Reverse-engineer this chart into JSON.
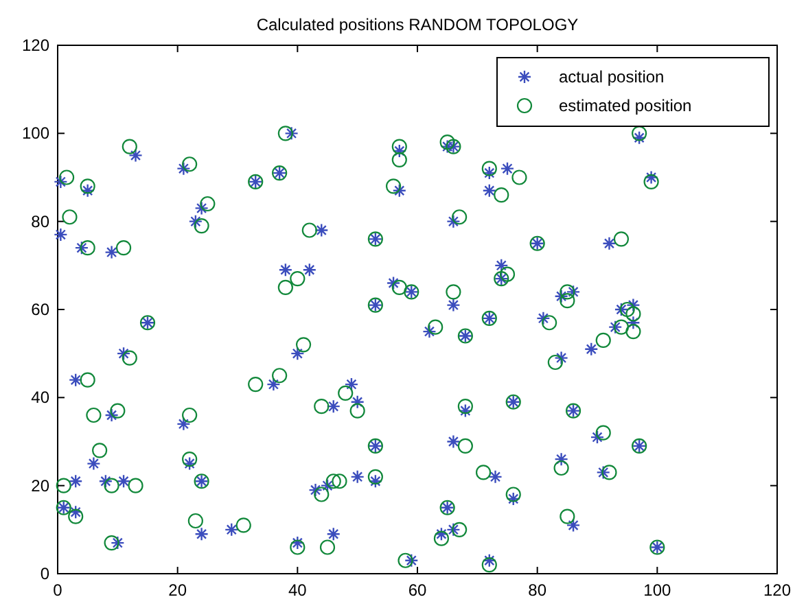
{
  "chart_data": {
    "type": "scatter",
    "title": "Calculated positions RANDOM TOPOLOGY",
    "xlim": [
      0,
      120
    ],
    "ylim": [
      0,
      120
    ],
    "xticks": [
      0,
      20,
      40,
      60,
      80,
      100,
      120
    ],
    "yticks": [
      0,
      20,
      40,
      60,
      80,
      100,
      120
    ],
    "legend": "top right",
    "grid": false,
    "series": [
      {
        "name": "actual position",
        "color": "#3b4dbd",
        "marker": "cross",
        "x": [
          0.5,
          0.5,
          4,
          5,
          13,
          9,
          21,
          23,
          24,
          39,
          37,
          33,
          44,
          53,
          57,
          57,
          65,
          66,
          66,
          72,
          75,
          72,
          80,
          97,
          99,
          92,
          15,
          11,
          3,
          36,
          38,
          40,
          42,
          53,
          56,
          59,
          62,
          66,
          68,
          72,
          74,
          74,
          81,
          84,
          86,
          84,
          89,
          94,
          96,
          96,
          93,
          49,
          50,
          46,
          21,
          9,
          6,
          3,
          8,
          11,
          1,
          3,
          10,
          22,
          24,
          24,
          29,
          43,
          45,
          46,
          40,
          53,
          53,
          50,
          59,
          65,
          64,
          66,
          66,
          68,
          73,
          76,
          76,
          72,
          84,
          86,
          86,
          90,
          91,
          97,
          100
        ],
        "values": [
          89,
          77,
          74,
          87,
          95,
          73,
          92,
          80,
          83,
          100,
          91,
          89,
          78,
          76,
          87,
          96,
          97,
          97,
          80,
          91,
          92,
          87,
          75,
          99,
          90,
          75,
          57,
          50,
          44,
          43,
          69,
          50,
          69,
          61,
          66,
          64,
          55,
          61,
          54,
          58,
          70,
          67,
          58,
          63,
          64,
          49,
          51,
          60,
          61,
          57,
          56,
          43,
          39,
          38,
          34,
          36,
          25,
          21,
          21,
          21,
          15,
          14,
          7,
          25,
          21,
          9,
          10,
          19,
          20,
          9,
          7,
          29,
          21,
          22,
          3,
          15,
          9,
          30,
          10,
          37,
          22,
          17,
          39,
          3,
          26,
          37,
          11,
          31,
          23,
          29,
          6
        ]
      },
      {
        "name": "estimated position",
        "color": "#11883a",
        "marker": "circle",
        "x": [
          1.5,
          2,
          5,
          5,
          12,
          11,
          22,
          24,
          25,
          38,
          37,
          33,
          42,
          53,
          56,
          57,
          65,
          66,
          67,
          72,
          77,
          74,
          80,
          97,
          99,
          94,
          15,
          12,
          5,
          33,
          38,
          41,
          40,
          53,
          57,
          59,
          63,
          66,
          68,
          72,
          75,
          74,
          82,
          85,
          85,
          83,
          91,
          95,
          96,
          96,
          94,
          48,
          50,
          44,
          22,
          10,
          7,
          1,
          9,
          13,
          1,
          3,
          9,
          22,
          24,
          23,
          31,
          44,
          46,
          45,
          40,
          53,
          53,
          47,
          58,
          65,
          64,
          68,
          67,
          68,
          71,
          76,
          76,
          72,
          84,
          86,
          85,
          91,
          92,
          97,
          100,
          37,
          57,
          6
        ],
        "values": [
          90,
          81,
          74,
          88,
          97,
          74,
          93,
          79,
          84,
          100,
          91,
          89,
          78,
          76,
          88,
          97,
          98,
          97,
          81,
          92,
          90,
          86,
          75,
          100,
          89,
          76,
          57,
          49,
          44,
          43,
          65,
          52,
          67,
          61,
          65,
          64,
          56,
          64,
          54,
          58,
          68,
          67,
          57,
          64,
          62,
          48,
          53,
          60,
          59,
          55,
          56,
          41,
          37,
          38,
          36,
          37,
          28,
          20,
          20,
          20,
          15,
          13,
          7,
          26,
          21,
          12,
          11,
          18,
          21,
          6,
          6,
          29,
          22,
          21,
          3,
          15,
          8,
          29,
          10,
          38,
          23,
          18,
          39,
          2,
          24,
          37,
          13,
          32,
          23,
          29,
          6,
          45,
          94,
          36
        ]
      }
    ]
  }
}
